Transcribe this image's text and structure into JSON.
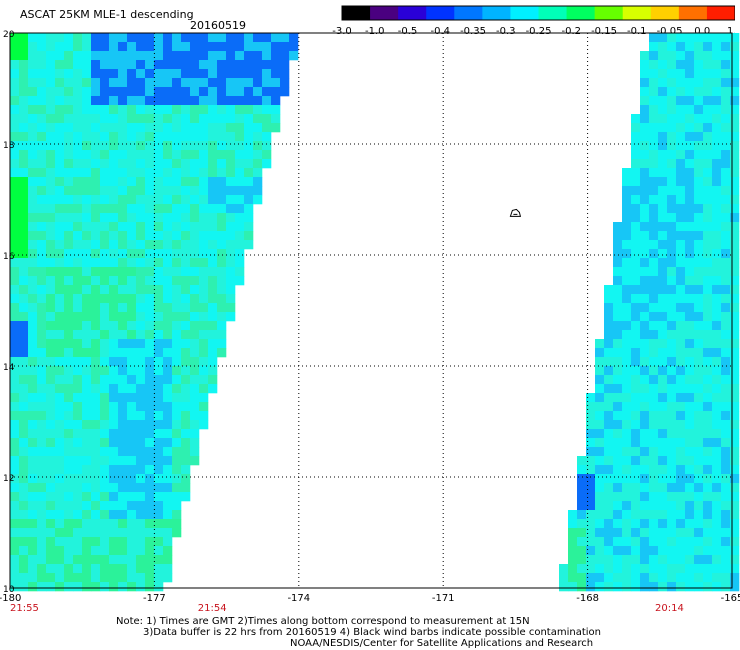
{
  "header": {
    "title": "ASCAT 25KM MLE-1 descending",
    "date": "20160519"
  },
  "colorbar": {
    "labels": [
      "-3.0",
      "-1.0",
      "-0.5",
      "-0.4",
      "-0.35",
      "-0.3",
      "-0.25",
      "-0.2",
      "-0.15",
      "-0.1",
      "-0.05",
      "0.0",
      "1.0"
    ],
    "colors": [
      "#000000",
      "#4a0080",
      "#2a00d8",
      "#0033ff",
      "#0077ff",
      "#00b4ff",
      "#00f0ff",
      "#00ffb8",
      "#00ff60",
      "#66ff00",
      "#d8ff00",
      "#ffd000",
      "#ff7000",
      "#ff1e00"
    ]
  },
  "map": {
    "lon_range": [
      -180,
      -165
    ],
    "lat_range": [
      10,
      20
    ],
    "lon_ticks": [
      "-180",
      "-177",
      "-174",
      "-171",
      "-168",
      "-165"
    ],
    "lat_ticks": [
      "20",
      "18",
      "16",
      "14",
      "12",
      "10"
    ],
    "time_labels": [
      {
        "text": "21:55",
        "lon": -180
      },
      {
        "text": "21:54",
        "lon": -175.8
      },
      {
        "text": "20:14",
        "lon": -166.3
      }
    ],
    "island_marker": {
      "lon": -169.5,
      "lat": 16.75
    },
    "swath_colors": {
      "field": "#22f3dc",
      "cyan": "#12f6f2",
      "green": "#2bf29a",
      "blue": "#17c6f6",
      "deep_blue": "#0a6cf8"
    }
  },
  "footer": {
    "note_line1": "Note: 1) Times are GMT 2)Times along bottom correspond to measurement at 15N",
    "note_line2": "3)Data buffer is 22 hrs from 20160519 4) Black wind barbs indicate possible contamination",
    "credit": "NOAA/NESDIS/Center for Satellite Applications and Research"
  }
}
